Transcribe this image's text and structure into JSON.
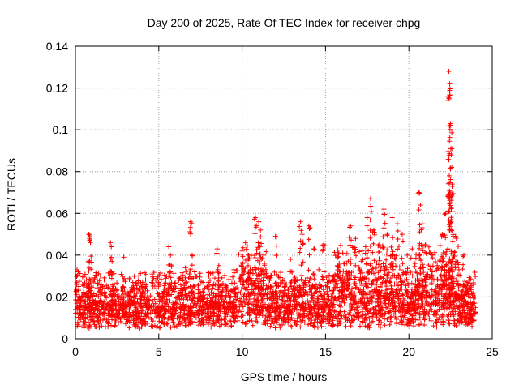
{
  "chart_data": {
    "type": "scatter",
    "title": "Day 200 of 2025, Rate Of TEC Index for receiver chpg",
    "xlabel": "GPS time / hours",
    "ylabel": "ROTI / TECUs",
    "xlim": [
      0,
      25
    ],
    "ylim": [
      0,
      0.14
    ],
    "xticks": [
      0,
      5,
      10,
      15,
      20,
      25
    ],
    "xtick_labels": [
      "0",
      "5",
      "10",
      "15",
      "20",
      "25"
    ],
    "yticks": [
      0,
      0.02,
      0.04,
      0.06,
      0.08,
      0.1,
      0.12,
      0.14
    ],
    "ytick_labels": [
      "0",
      "0.02",
      "0.04",
      "0.06",
      "0.08",
      "0.1",
      "0.12",
      "0.14"
    ],
    "grid": true,
    "marker": "+",
    "series_color": "#ff0000",
    "series": [
      {
        "name": "ROTI",
        "x": [
          0.0,
          0.1,
          0.2,
          0.3,
          0.5,
          0.8,
          0.85,
          0.9,
          1.2,
          1.5,
          1.8,
          2.1,
          2.15,
          2.2,
          2.5,
          2.9,
          3.0,
          3.3,
          3.8,
          4.2,
          4.6,
          5.0,
          5.3,
          5.6,
          5.7,
          6.2,
          6.6,
          6.9,
          7.0,
          7.1,
          7.5,
          8.0,
          8.5,
          8.6,
          9.0,
          9.5,
          9.9,
          10.0,
          10.2,
          10.4,
          10.5,
          10.8,
          11.0,
          11.1,
          11.3,
          11.7,
          12.0,
          12.5,
          12.9,
          13.2,
          13.5,
          13.6,
          13.8,
          14.0,
          14.3,
          14.6,
          14.9,
          15.1,
          15.5,
          15.8,
          16.1,
          16.5,
          16.8,
          17.2,
          17.5,
          17.7,
          17.9,
          18.2,
          18.5,
          18.7,
          19.0,
          19.3,
          19.6,
          19.9,
          20.2,
          20.5,
          20.6,
          20.7,
          20.8,
          21.0,
          21.4,
          21.7,
          22.0,
          22.2,
          22.4,
          22.45,
          22.5,
          22.55,
          22.6,
          22.8,
          23.0,
          23.3,
          23.6,
          23.9,
          24.0
        ],
        "y": [
          0.014,
          0.033,
          0.025,
          0.012,
          0.016,
          0.05,
          0.048,
          0.046,
          0.017,
          0.03,
          0.014,
          0.046,
          0.044,
          0.037,
          0.02,
          0.039,
          0.016,
          0.018,
          0.03,
          0.012,
          0.031,
          0.015,
          0.02,
          0.044,
          0.04,
          0.028,
          0.034,
          0.056,
          0.04,
          0.022,
          0.016,
          0.03,
          0.043,
          0.035,
          0.02,
          0.033,
          0.022,
          0.042,
          0.046,
          0.04,
          0.033,
          0.058,
          0.056,
          0.052,
          0.04,
          0.025,
          0.049,
          0.028,
          0.038,
          0.028,
          0.056,
          0.05,
          0.022,
          0.054,
          0.043,
          0.033,
          0.045,
          0.027,
          0.03,
          0.041,
          0.036,
          0.054,
          0.048,
          0.042,
          0.058,
          0.067,
          0.052,
          0.045,
          0.062,
          0.05,
          0.058,
          0.055,
          0.05,
          0.04,
          0.043,
          0.03,
          0.07,
          0.064,
          0.055,
          0.045,
          0.04,
          0.035,
          0.05,
          0.06,
          0.128,
          0.122,
          0.103,
          0.088,
          0.074,
          0.049,
          0.033,
          0.04,
          0.028,
          0.022,
          0.015
        ],
        "baseline_band": [
          0.005,
          0.025
        ]
      }
    ]
  }
}
